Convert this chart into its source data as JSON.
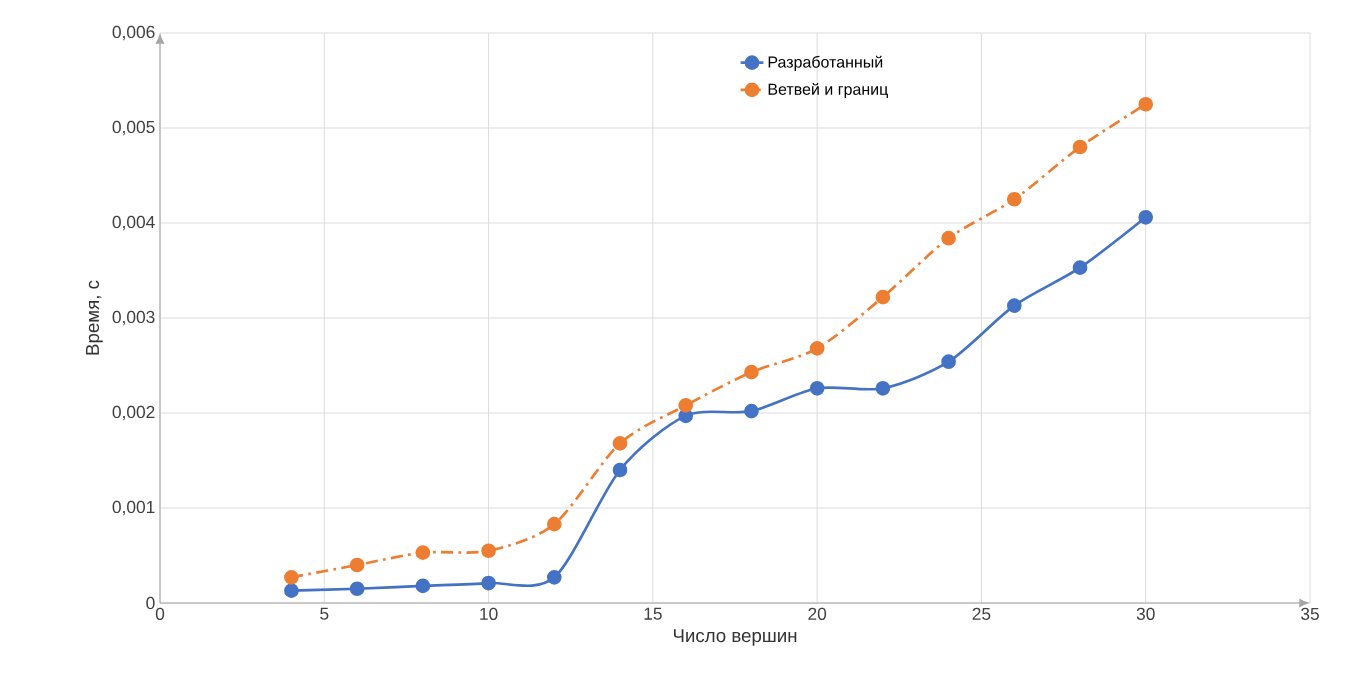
{
  "chart_data": {
    "type": "line",
    "xlabel": "Число вершин",
    "ylabel": "Время, с",
    "x": [
      4,
      6,
      8,
      10,
      12,
      14,
      16,
      18,
      20,
      22,
      24,
      26,
      28,
      30
    ],
    "series": [
      {
        "name": "Разработанный",
        "color": "#4472c4",
        "line_style": "solid",
        "values": [
          0.00013,
          0.00015,
          0.00018,
          0.00021,
          0.00027,
          0.0014,
          0.00197,
          0.00202,
          0.00226,
          0.00226,
          0.00254,
          0.00313,
          0.00353,
          0.00406
        ]
      },
      {
        "name": "Ветвей и границ",
        "color": "#ed7d31",
        "line_style": "dashed",
        "values": [
          0.00027,
          0.0004,
          0.00053,
          0.00055,
          0.00083,
          0.00168,
          0.00208,
          0.00243,
          0.00268,
          0.00322,
          0.00384,
          0.00425,
          0.0048,
          0.00525
        ]
      }
    ],
    "xlim": [
      0,
      35
    ],
    "xticks": [
      0,
      5,
      10,
      15,
      20,
      25,
      30,
      35
    ],
    "ylim": [
      0,
      0.006
    ],
    "yticks": [
      {
        "value": 0,
        "label": "0"
      },
      {
        "value": 0.001,
        "label": "0,001"
      },
      {
        "value": 0.002,
        "label": "0,002"
      },
      {
        "value": 0.003,
        "label": "0,003"
      },
      {
        "value": 0.004,
        "label": "0,004"
      },
      {
        "value": 0.005,
        "label": "0,005"
      },
      {
        "value": 0.006,
        "label": "0,006"
      }
    ],
    "grid": true,
    "legend": "top right",
    "marker": "circle"
  }
}
